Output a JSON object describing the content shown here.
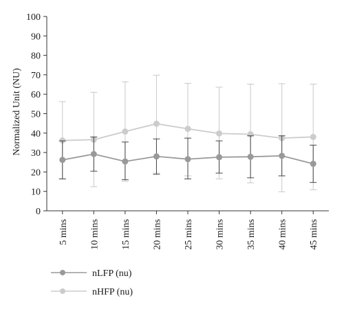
{
  "chart_data": {
    "type": "line",
    "title": "",
    "xlabel": "",
    "ylabel": "Normalized Unit (NU)",
    "ylim": [
      0,
      100
    ],
    "yticks": [
      0,
      10,
      20,
      30,
      40,
      50,
      60,
      70,
      80,
      90,
      100
    ],
    "categories": [
      "5 mins",
      "10 mins",
      "15 mins",
      "20 mins",
      "25 mins",
      "30 mins",
      "35 mins",
      "40 mins",
      "45 mins"
    ],
    "grid": false,
    "legend_position": "bottom-left",
    "error_bars": true,
    "series": [
      {
        "name": "nLFP (nu)",
        "color": "#999999",
        "values": [
          26.2,
          29.2,
          25.4,
          28.0,
          26.6,
          27.6,
          27.8,
          28.3,
          24.2
        ],
        "error_low": [
          16.4,
          20.4,
          16.0,
          18.8,
          16.4,
          19.4,
          17.0,
          18.0,
          14.6
        ],
        "error_high": [
          36.0,
          38.0,
          35.4,
          37.0,
          37.4,
          36.0,
          38.6,
          38.6,
          33.8
        ]
      },
      {
        "name": "nHFP (nu)",
        "color": "#cccccc",
        "values": [
          36.2,
          36.6,
          40.8,
          44.8,
          42.2,
          39.8,
          39.4,
          37.4,
          38.0
        ],
        "error_low": [
          16.4,
          12.4,
          15.2,
          19.4,
          18.0,
          16.4,
          14.4,
          9.8,
          10.8
        ],
        "error_high": [
          56.2,
          61.0,
          66.4,
          69.8,
          65.6,
          63.6,
          65.2,
          65.4,
          65.2
        ]
      }
    ]
  }
}
